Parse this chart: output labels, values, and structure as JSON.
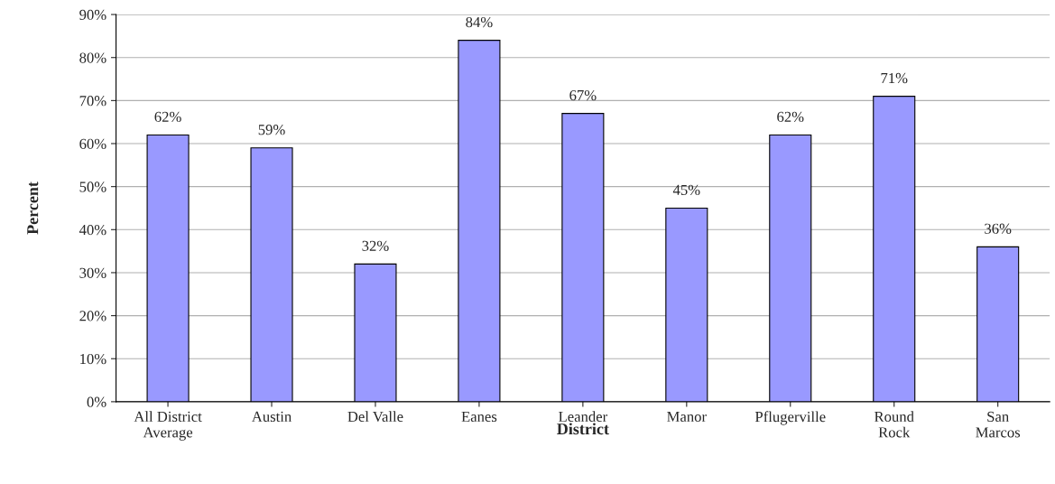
{
  "chart_data": {
    "type": "bar",
    "xlabel": "District",
    "ylabel": "Percent",
    "categories": [
      "All District\nAverage",
      "Austin",
      "Del Valle",
      "Eanes",
      "Leander",
      "Manor",
      "Pflugerville",
      "Round\nRock",
      "San\nMarcos"
    ],
    "values": [
      62,
      59,
      32,
      84,
      67,
      45,
      62,
      71,
      36
    ],
    "value_labels": [
      "62%",
      "59%",
      "32%",
      "84%",
      "67%",
      "45%",
      "62%",
      "71%",
      "36%"
    ],
    "color": "#9999ff",
    "ylim": [
      0,
      90
    ],
    "yticks": [
      {
        "value": 0,
        "label": "0%"
      },
      {
        "value": 10,
        "label": "10%"
      },
      {
        "value": 20,
        "label": "20%"
      },
      {
        "value": 30,
        "label": "30%"
      },
      {
        "value": 40,
        "label": "40%"
      },
      {
        "value": 50,
        "label": "50%"
      },
      {
        "value": 60,
        "label": "60%"
      },
      {
        "value": 70,
        "label": "70%"
      },
      {
        "value": 80,
        "label": "80%"
      },
      {
        "value": 90,
        "label": "90%"
      }
    ],
    "grid": "y",
    "legend": false
  }
}
